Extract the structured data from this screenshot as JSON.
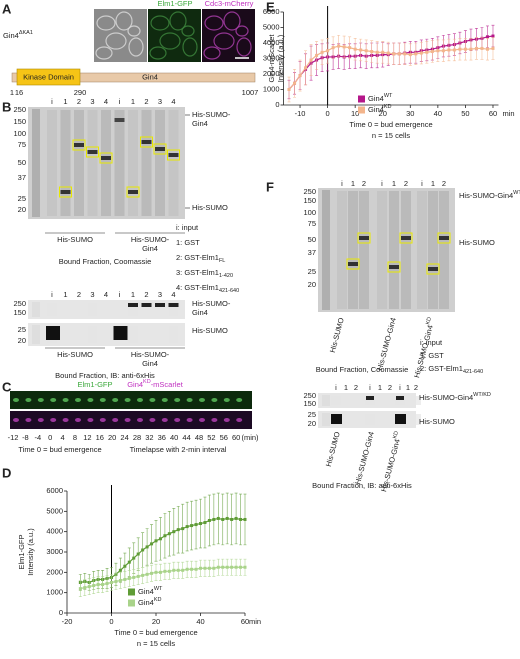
{
  "figure": {
    "panels": [
      "A",
      "B",
      "C",
      "D",
      "E",
      "F"
    ],
    "a": {
      "strain": {
        "text": "Gin4",
        "sup": "ΔKA1"
      },
      "channels": [
        "Elm1-GFP",
        "Cdc3-mCherry"
      ],
      "domain": "Kinase Domain",
      "protein": "Gin4",
      "positions": [
        "1",
        "16",
        "290",
        "1007"
      ]
    },
    "b": {
      "lanes": [
        "i",
        "1",
        "2",
        "3",
        "4",
        "i",
        "1",
        "2",
        "3",
        "4"
      ],
      "markers": [
        "250",
        "150",
        "100",
        "75",
        "50",
        "37",
        "25",
        "20"
      ],
      "band_labels": [
        [
          "His-SUMO-",
          "Gin4"
        ],
        "His-SUMO"
      ],
      "groups": [
        "His-SUMO",
        [
          "His-SUMO-",
          "Gin4"
        ]
      ],
      "caption": "Bound Fraction, Coomassie",
      "legend": [
        "i: input",
        "1: GST",
        {
          "text": "2: GST-Elm1",
          "sub": "FL"
        },
        {
          "text": "3: GST-Elm1",
          "sub": "1-420"
        },
        {
          "text": "4: GST-Elm1",
          "sub": "421-640"
        }
      ],
      "blot_lanes": [
        "i",
        "1",
        "2",
        "3",
        "4",
        "i",
        "1",
        "2",
        "3",
        "4"
      ],
      "blot_markers": [
        "250",
        "150",
        "25",
        "20"
      ],
      "blot_labels": [
        [
          "His-SUMO-",
          "Gin4"
        ],
        "His-SUMO"
      ],
      "blot_groups": [
        "His-SUMO",
        [
          "His-SUMO-",
          "Gin4"
        ]
      ],
      "blot_caption": "Bound Fraction, IB: anti-6xHis"
    },
    "c": {
      "channels": [
        "Elm1-GFP",
        {
          "text": "Gin4",
          "sup": "KD",
          "rest": "-mScarlet"
        }
      ],
      "times": [
        "-12",
        "-8",
        "-4",
        "0",
        "4",
        "8",
        "12",
        "16",
        "20",
        "24",
        "28",
        "32",
        "36",
        "40",
        "44",
        "48",
        "52",
        "56",
        "60"
      ],
      "unit": "(min)",
      "notes": [
        "Time 0 = bud emergence",
        "Timelapse with 2-min interval"
      ]
    },
    "f": {
      "lanes": [
        "i",
        "1",
        "2",
        "i",
        "1",
        "2",
        "i",
        "1",
        "2"
      ],
      "markers": [
        "250",
        "150",
        "100",
        "75",
        "50",
        "37",
        "25",
        "20"
      ],
      "band_labels": [
        {
          "text": "His-SUMO-Gin4",
          "sup": "WT/KD"
        },
        "His-SUMO"
      ],
      "groups": [
        "His-SUMO",
        "His-SUMO-Gin4",
        {
          "text": "His-SUMO-Gin4",
          "sup": "KD"
        }
      ],
      "caption": "Bound Fraction, Coomassie",
      "legend": [
        "i: input",
        "1: GST",
        {
          "text": "2: GST-Elm1",
          "sub": "421-640"
        }
      ],
      "blot_lanes": [
        "i",
        "1",
        "2",
        "i",
        "1",
        "2",
        "i",
        "1",
        "2"
      ],
      "blot_markers": [
        "250",
        "150",
        "25",
        "20"
      ],
      "blot_labels": [
        {
          "text": "His-SUMO-Gin4",
          "sup": "WT/KD"
        },
        "His-SUMO"
      ],
      "blot_groups": [
        "His-SUMO",
        "His-SUMO-Gin4",
        {
          "text": "His-SUMO-Gin4",
          "sup": "KD"
        }
      ],
      "blot_caption": "Bound Fraction, IB: anti-6xHis"
    }
  },
  "chart_data": [
    {
      "type": "line",
      "y_label": [
        "Elm1-GFP",
        "Intensity (a.u.)"
      ],
      "x_label": "Time 0 = bud emergence",
      "note": "n = 15 cells",
      "x_unit": "min",
      "vline": 0,
      "xlim": [
        -20,
        60
      ],
      "ylim": [
        0,
        6000
      ],
      "xticks": [
        -20,
        0,
        20,
        40,
        60
      ],
      "yticks": [
        0,
        1000,
        2000,
        3000,
        4000,
        5000,
        6000
      ],
      "x": [
        -14,
        -12,
        -10,
        -8,
        -6,
        -4,
        -2,
        0,
        2,
        4,
        6,
        8,
        10,
        12,
        14,
        16,
        18,
        20,
        22,
        24,
        26,
        28,
        30,
        32,
        34,
        36,
        38,
        40,
        42,
        44,
        46,
        48,
        50,
        52,
        54,
        56,
        58,
        60
      ],
      "series": [
        {
          "name": "Gin4",
          "name_sup": "WT",
          "color": "#5f9c36",
          "values": [
            1500,
            1550,
            1500,
            1600,
            1650,
            1650,
            1700,
            1750,
            1900,
            2100,
            2300,
            2500,
            2700,
            2900,
            3100,
            3250,
            3400,
            3550,
            3650,
            3800,
            3900,
            4000,
            4100,
            4150,
            4250,
            4300,
            4350,
            4400,
            4450,
            4550,
            4600,
            4650,
            4600,
            4650,
            4600,
            4650,
            4600,
            4600
          ],
          "errors": [
            400,
            400,
            400,
            450,
            450,
            450,
            500,
            500,
            550,
            600,
            650,
            700,
            750,
            800,
            850,
            900,
            950,
            1000,
            1050,
            1100,
            1100,
            1150,
            1150,
            1200,
            1200,
            1200,
            1200,
            1200,
            1250,
            1250,
            1250,
            1250,
            1250,
            1250,
            1250,
            1250,
            1250,
            1250
          ]
        },
        {
          "name": "Gin4",
          "name_sup": "KD",
          "color": "#a9d38a",
          "values": [
            1200,
            1250,
            1300,
            1350,
            1400,
            1400,
            1450,
            1500,
            1550,
            1600,
            1650,
            1700,
            1750,
            1800,
            1850,
            1900,
            1950,
            2000,
            2000,
            2050,
            2050,
            2100,
            2100,
            2100,
            2150,
            2150,
            2150,
            2200,
            2200,
            2200,
            2200,
            2250,
            2250,
            2250,
            2250,
            2250,
            2250,
            2250
          ],
          "errors": [
            400,
            400,
            400,
            400,
            400,
            400,
            400,
            400,
            400,
            400,
            400,
            400,
            400,
            400,
            400,
            400,
            400,
            400,
            400,
            400,
            400,
            400,
            400,
            400,
            400,
            400,
            400,
            400,
            400,
            400,
            400,
            400,
            400,
            400,
            400,
            400,
            400,
            400
          ]
        }
      ]
    },
    {
      "type": "line",
      "y_label": [
        "Gin4-mScarlet",
        "Intensity (a.u.)"
      ],
      "x_label": "Time 0 = bud emergence",
      "note": "n = 15 cells",
      "x_unit": "min",
      "vline": 0,
      "xlim": [
        -16,
        62
      ],
      "ylim": [
        0,
        6000
      ],
      "xticks": [
        -10,
        0,
        10,
        20,
        30,
        40,
        50,
        60
      ],
      "yticks": [
        0,
        1000,
        2000,
        3000,
        4000,
        5000,
        6000
      ],
      "x": [
        -14,
        -12,
        -10,
        -8,
        -6,
        -4,
        -2,
        0,
        2,
        4,
        6,
        8,
        10,
        12,
        14,
        16,
        18,
        20,
        22,
        24,
        26,
        28,
        30,
        32,
        34,
        36,
        38,
        40,
        42,
        44,
        46,
        48,
        50,
        52,
        54,
        56,
        58,
        60
      ],
      "series": [
        {
          "name": "Gin4",
          "name_sup": "WT",
          "color": "#b5178a",
          "values": [
            1000,
            1400,
            1900,
            2300,
            2700,
            2900,
            3050,
            3100,
            3100,
            3150,
            3100,
            3150,
            3150,
            3200,
            3150,
            3200,
            3200,
            3250,
            3250,
            3300,
            3300,
            3350,
            3400,
            3400,
            3500,
            3550,
            3600,
            3700,
            3800,
            3850,
            3900,
            4000,
            4100,
            4200,
            4250,
            4300,
            4400,
            4450
          ],
          "errors": [
            600,
            700,
            900,
            1000,
            1100,
            1000,
            900,
            900,
            800,
            800,
            800,
            800,
            800,
            800,
            800,
            800,
            800,
            800,
            700,
            700,
            700,
            700,
            700,
            700,
            700,
            700,
            700,
            700,
            700,
            700,
            700,
            700,
            700,
            700,
            700,
            700,
            700,
            700
          ]
        },
        {
          "name": "Gin4",
          "name_sup": "KD",
          "color": "#f3b58c",
          "values": [
            1000,
            1400,
            1900,
            2400,
            2900,
            3200,
            3400,
            3500,
            3700,
            3800,
            3750,
            3700,
            3600,
            3550,
            3500,
            3450,
            3400,
            3400,
            3350,
            3300,
            3300,
            3300,
            3250,
            3300,
            3350,
            3400,
            3450,
            3500,
            3500,
            3550,
            3550,
            3600,
            3600,
            3600,
            3650,
            3650,
            3600,
            3650
          ],
          "errors": [
            800,
            900,
            1000,
            1100,
            1000,
            900,
            800,
            800,
            700,
            700,
            700,
            700,
            700,
            700,
            700,
            700,
            700,
            700,
            700,
            700,
            700,
            700,
            700,
            700,
            700,
            700,
            700,
            700,
            700,
            700,
            700,
            700,
            700,
            700,
            700,
            700,
            700,
            700
          ]
        }
      ]
    }
  ]
}
